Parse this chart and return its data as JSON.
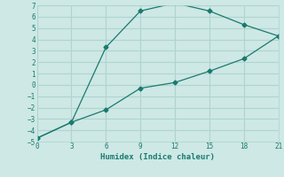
{
  "line1_x": [
    0,
    3,
    6,
    9,
    12,
    15,
    18,
    21
  ],
  "line1_y": [
    -4.7,
    -3.3,
    3.3,
    6.5,
    7.2,
    6.5,
    5.3,
    4.3
  ],
  "line2_x": [
    0,
    3,
    6,
    9,
    12,
    15,
    18,
    21
  ],
  "line2_y": [
    -4.7,
    -3.3,
    -2.2,
    -0.3,
    0.2,
    1.2,
    2.3,
    4.3
  ],
  "color": "#1a7a6e",
  "xlabel": "Humidex (Indice chaleur)",
  "xlim": [
    0,
    21
  ],
  "ylim": [
    -5,
    7
  ],
  "xticks": [
    0,
    3,
    6,
    9,
    12,
    15,
    18,
    21
  ],
  "yticks": [
    -5,
    -4,
    -3,
    -2,
    -1,
    0,
    1,
    2,
    3,
    4,
    5,
    6,
    7
  ],
  "bg_color": "#cde8e5",
  "grid_color": "#b0d4d0"
}
